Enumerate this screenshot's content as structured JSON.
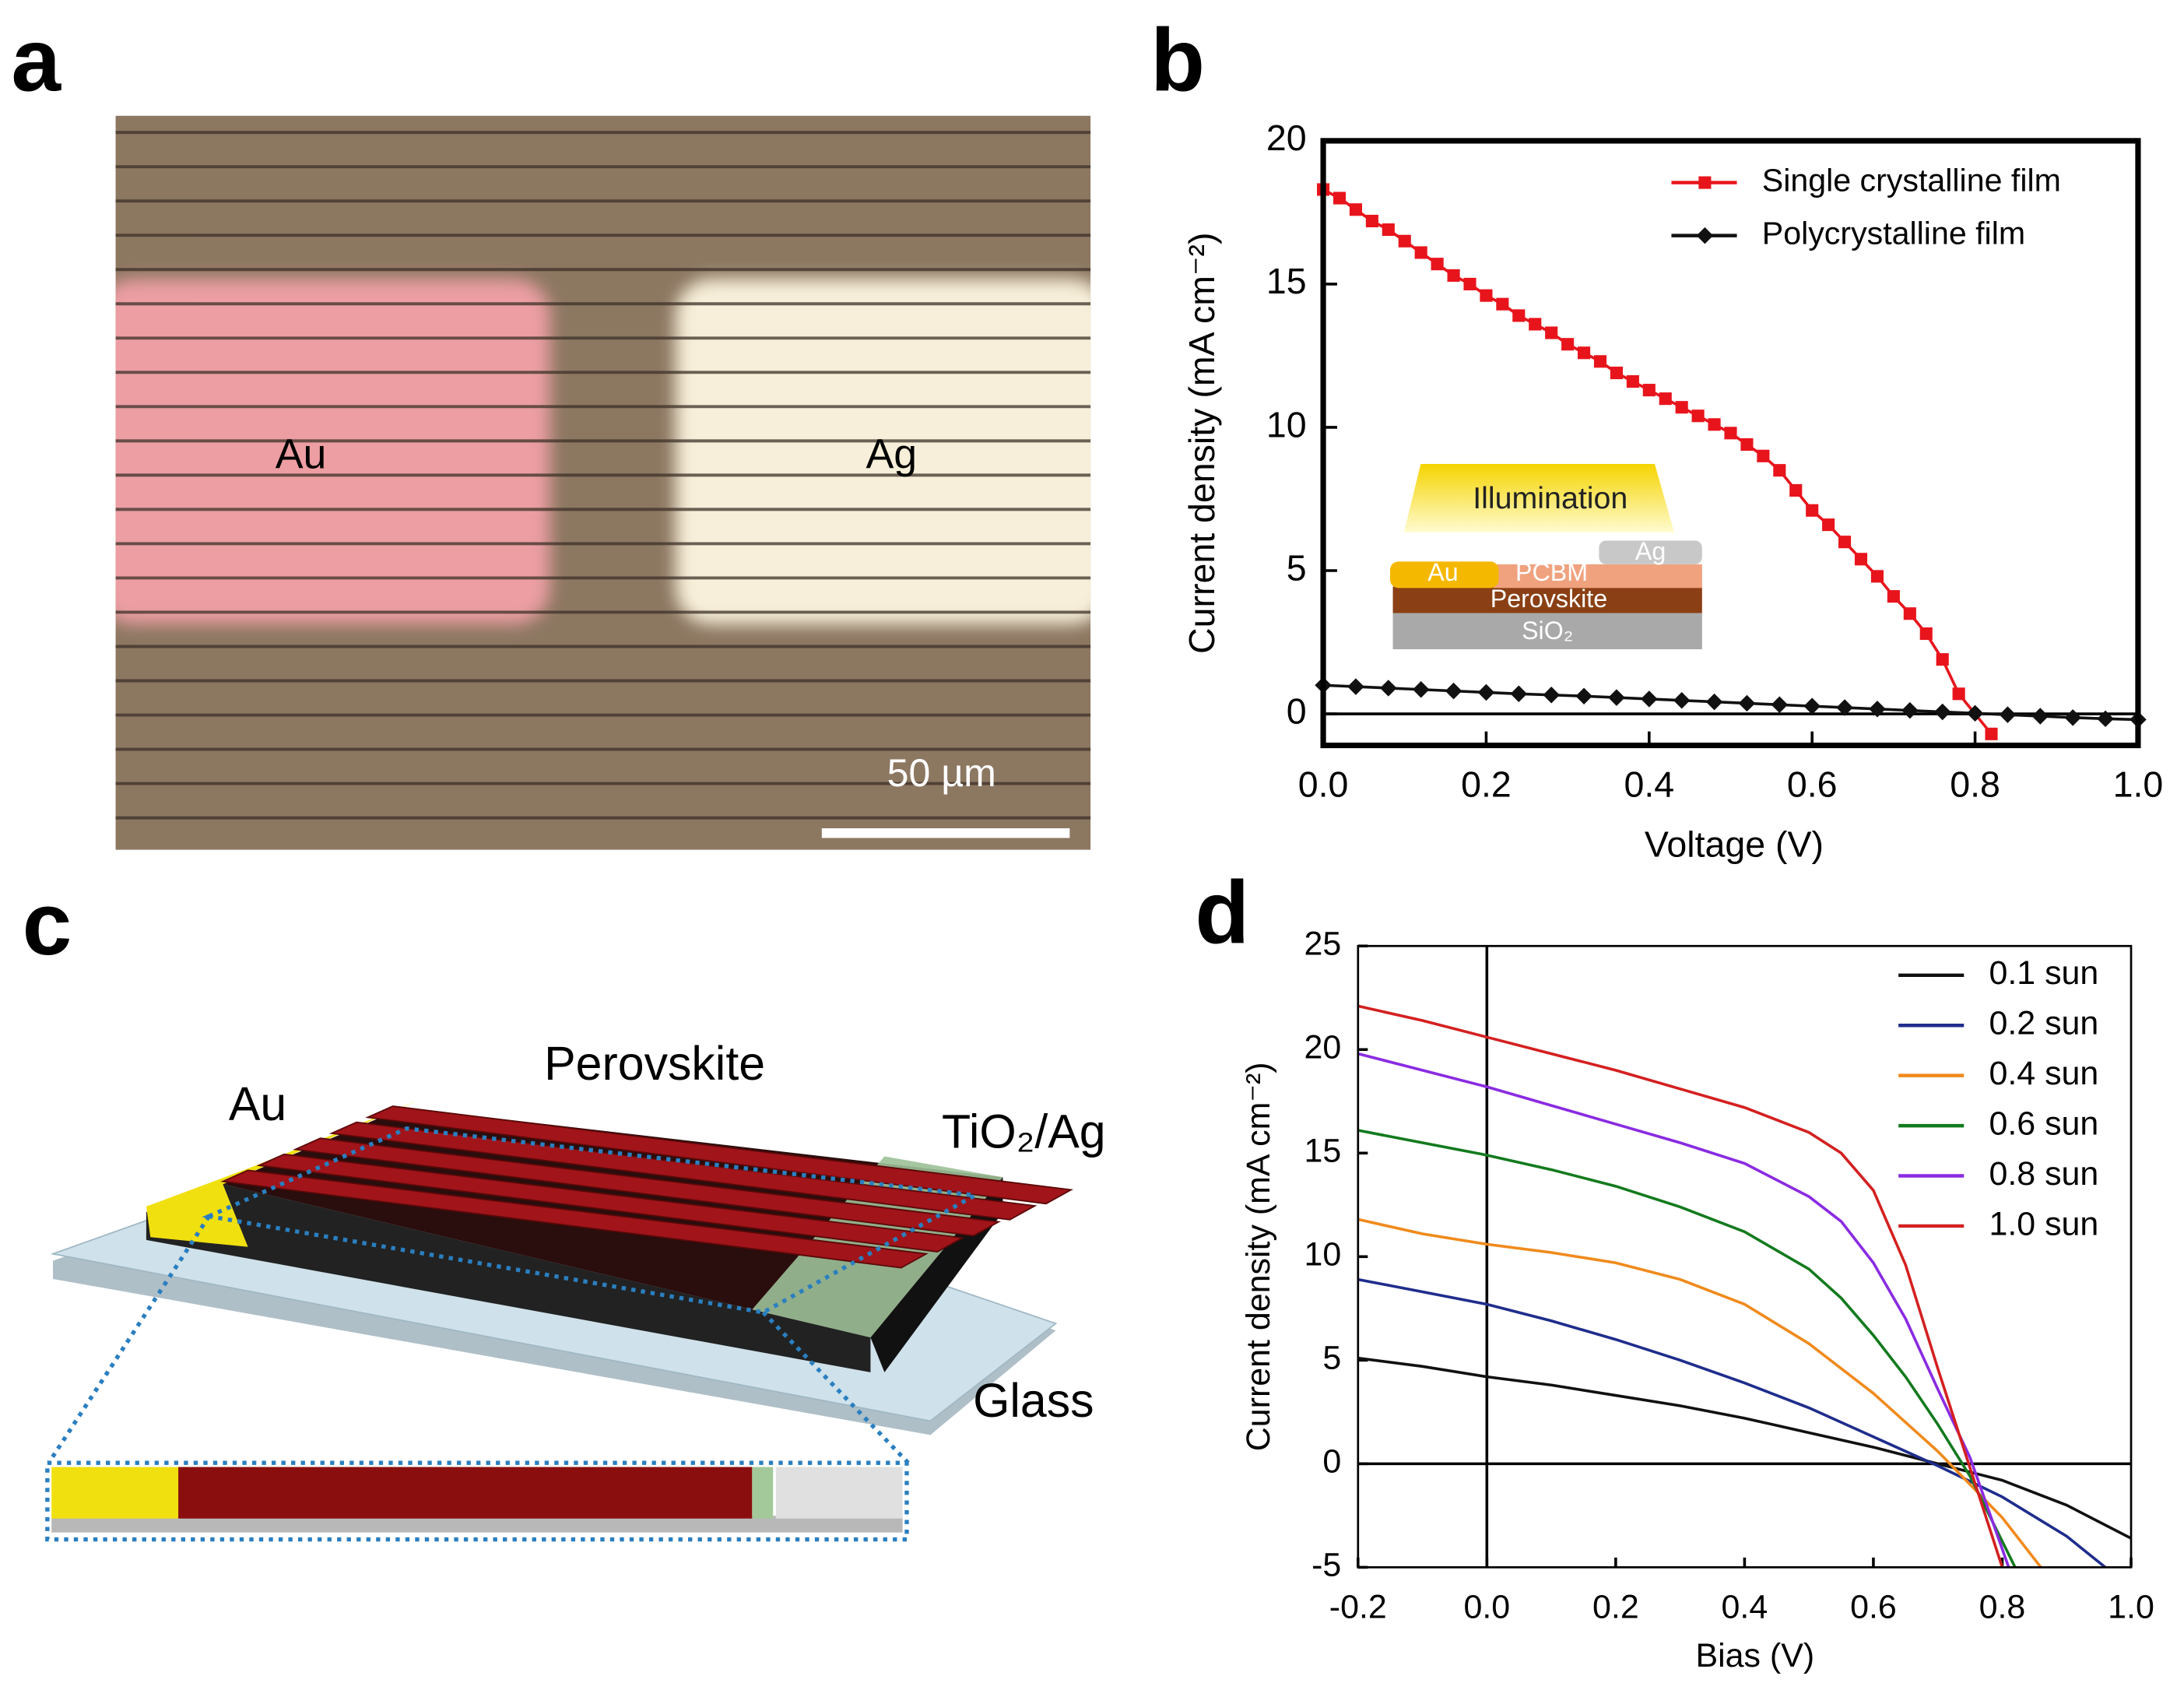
{
  "panels": {
    "a": {
      "label": "a",
      "texts": {
        "au": "Au",
        "ag": "Ag",
        "scale_bar": "50 µm"
      }
    },
    "b": {
      "label": "b"
    },
    "c": {
      "label": "c",
      "texts": {
        "au": "Au",
        "perovskite": "Perovskite",
        "electrode": "TiO₂/Ag",
        "glass": "Glass"
      }
    },
    "d": {
      "label": "d"
    }
  },
  "chart_data": [
    {
      "type": "line",
      "xlabel": "Voltage (V)",
      "ylabel": "Current density (mA cm⁻²)",
      "xlim": [
        0,
        1
      ],
      "ylim": [
        -1.1,
        20
      ],
      "xticks": [
        {
          "value": 0,
          "label": "0.0"
        },
        0.2,
        0.4,
        0.6,
        0.8,
        {
          "value": 1,
          "label": "1.0"
        }
      ],
      "yticks": [
        0,
        5,
        10,
        15,
        20
      ],
      "hlines": [
        0
      ],
      "legend": "upper right",
      "annotations": [
        "Illumination",
        "Ag",
        "Au",
        "PCBM",
        "Perovskite",
        "SiO₂"
      ],
      "series": [
        {
          "name": "Single crystalline film",
          "color": "#e8141c",
          "marker": "square",
          "x": [
            0,
            0.02,
            0.04,
            0.06,
            0.08,
            0.1,
            0.12,
            0.14,
            0.16,
            0.18,
            0.2,
            0.22,
            0.24,
            0.26,
            0.28,
            0.3,
            0.32,
            0.34,
            0.36,
            0.38,
            0.4,
            0.42,
            0.44,
            0.46,
            0.48,
            0.5,
            0.52,
            0.54,
            0.56,
            0.58,
            0.6,
            0.62,
            0.64,
            0.66,
            0.68,
            0.7,
            0.72,
            0.74,
            0.76,
            0.78,
            0.82
          ],
          "values": [
            18.3,
            18.0,
            17.6,
            17.2,
            16.9,
            16.5,
            16.1,
            15.7,
            15.3,
            15.0,
            14.6,
            14.3,
            13.9,
            13.6,
            13.3,
            12.9,
            12.6,
            12.3,
            11.9,
            11.6,
            11.3,
            11.0,
            10.7,
            10.4,
            10.1,
            9.8,
            9.4,
            9.0,
            8.5,
            7.8,
            7.1,
            6.6,
            6.0,
            5.4,
            4.8,
            4.1,
            3.5,
            2.8,
            1.9,
            0.7,
            -0.7
          ]
        },
        {
          "name": "Polycrystalline film",
          "color": "#111111",
          "marker": "diamond",
          "x": [
            0,
            0.04,
            0.08,
            0.12,
            0.16,
            0.2,
            0.24,
            0.28,
            0.32,
            0.36,
            0.4,
            0.44,
            0.48,
            0.52,
            0.56,
            0.6,
            0.64,
            0.68,
            0.72,
            0.76,
            0.8,
            0.84,
            0.88,
            0.92,
            0.96,
            1
          ],
          "values": [
            1.0,
            0.95,
            0.9,
            0.85,
            0.8,
            0.75,
            0.7,
            0.66,
            0.62,
            0.57,
            0.52,
            0.47,
            0.42,
            0.37,
            0.32,
            0.27,
            0.22,
            0.17,
            0.12,
            0.07,
            0.02,
            -0.03,
            -0.08,
            -0.13,
            -0.17,
            -0.2
          ]
        }
      ]
    },
    {
      "type": "line",
      "xlabel": "Bias (V)",
      "ylabel": "Current density (mA cm⁻²)",
      "xlim": [
        -0.2,
        1
      ],
      "ylim": [
        -5,
        25
      ],
      "xticks": [
        -0.2,
        {
          "value": 0,
          "label": "0.0"
        },
        0.2,
        0.4,
        0.6,
        0.8,
        {
          "value": 1,
          "label": "1.0"
        }
      ],
      "yticks": [
        -5,
        0,
        5,
        10,
        15,
        20,
        25
      ],
      "hlines": [
        0
      ],
      "vlines": [
        0
      ],
      "legend": "upper right",
      "series": [
        {
          "name": "0.1 sun",
          "color": "#111111",
          "x": [
            -0.2,
            -0.1,
            0,
            0.1,
            0.2,
            0.3,
            0.4,
            0.5,
            0.6,
            0.7,
            0.8,
            0.9,
            1
          ],
          "values": [
            5.1,
            4.7,
            4.2,
            3.8,
            3.3,
            2.8,
            2.2,
            1.5,
            0.8,
            0.0,
            -0.8,
            -2.0,
            -3.6
          ]
        },
        {
          "name": "0.2 sun",
          "color": "#1f2d8c",
          "x": [
            -0.2,
            -0.1,
            0,
            0.1,
            0.2,
            0.3,
            0.4,
            0.5,
            0.6,
            0.7,
            0.8,
            0.9,
            0.96
          ],
          "values": [
            8.9,
            8.3,
            7.7,
            6.9,
            6.0,
            5.0,
            3.9,
            2.7,
            1.3,
            -0.1,
            -1.6,
            -3.5,
            -5
          ]
        },
        {
          "name": "0.4 sun",
          "color": "#f08a1c",
          "x": [
            -0.2,
            -0.1,
            0,
            0.1,
            0.2,
            0.3,
            0.4,
            0.5,
            0.6,
            0.7,
            0.8,
            0.86
          ],
          "values": [
            11.8,
            11.1,
            10.6,
            10.2,
            9.7,
            8.9,
            7.7,
            5.8,
            3.4,
            0.6,
            -2.6,
            -5
          ]
        },
        {
          "name": "0.6 sun",
          "color": "#137a1e",
          "x": [
            -0.2,
            -0.1,
            0,
            0.1,
            0.2,
            0.3,
            0.4,
            0.5,
            0.55,
            0.6,
            0.65,
            0.7,
            0.75,
            0.82
          ],
          "values": [
            16.1,
            15.5,
            14.9,
            14.2,
            13.4,
            12.4,
            11.2,
            9.4,
            8.0,
            6.2,
            4.2,
            1.9,
            -0.6,
            -5
          ]
        },
        {
          "name": "0.8 sun",
          "color": "#8a2be2",
          "x": [
            -0.2,
            -0.1,
            0,
            0.1,
            0.2,
            0.3,
            0.4,
            0.5,
            0.55,
            0.6,
            0.65,
            0.7,
            0.75,
            0.81
          ],
          "values": [
            19.8,
            19.0,
            18.2,
            17.3,
            16.4,
            15.5,
            14.5,
            12.9,
            11.7,
            9.7,
            7.0,
            3.6,
            0.3,
            -5
          ]
        },
        {
          "name": "1.0 sun",
          "color": "#d42020",
          "x": [
            -0.2,
            -0.1,
            0,
            0.1,
            0.2,
            0.3,
            0.4,
            0.5,
            0.55,
            0.6,
            0.65,
            0.7,
            0.75,
            0.8
          ],
          "values": [
            22.1,
            21.4,
            20.6,
            19.8,
            19.0,
            18.1,
            17.2,
            16.0,
            15.0,
            13.2,
            9.6,
            4.6,
            -0.2,
            -5.0
          ]
        }
      ]
    }
  ]
}
